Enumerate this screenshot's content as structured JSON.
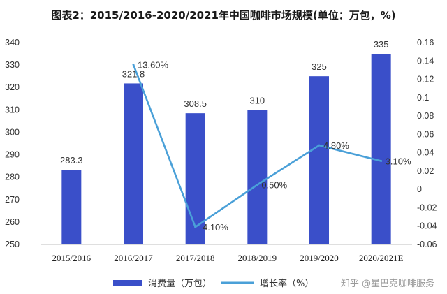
{
  "chart_data": {
    "type": "bar",
    "title": "图表2：2015/2016-2020/2021年中国咖啡市场规模(单位：万包，%)",
    "categories": [
      "2015/2016",
      "2016/2017",
      "2017/2018",
      "2018/2019",
      "2019/2020",
      "2020/2021E"
    ],
    "series": [
      {
        "name": "消费量（万包）",
        "type": "bar",
        "axis": "left",
        "color": "#3a4fc9",
        "values": [
          283.3,
          321.8,
          308.5,
          310,
          325,
          335
        ],
        "labels": [
          "283.3",
          "321.8",
          "308.5",
          "310",
          "325",
          "335"
        ]
      },
      {
        "name": "增长率（%）",
        "type": "line",
        "axis": "right",
        "color": "#4aa0d8",
        "values": [
          null,
          0.136,
          -0.041,
          0.005,
          0.048,
          0.031
        ],
        "labels": [
          "",
          "13.60%",
          "-4.10%",
          "0.50%",
          "4.80%",
          "3.10%"
        ]
      }
    ],
    "y_left": {
      "min": 250,
      "max": 340,
      "ticks": [
        250,
        260,
        270,
        280,
        290,
        300,
        310,
        320,
        330,
        340
      ],
      "tick_labels": [
        "250",
        "260",
        "270",
        "280",
        "290",
        "300",
        "310",
        "320",
        "330",
        "340"
      ]
    },
    "y_right": {
      "min": -0.06,
      "max": 0.16,
      "ticks": [
        -0.06,
        -0.04,
        -0.02,
        0,
        0.02,
        0.04,
        0.06,
        0.08,
        0.1,
        0.12,
        0.14,
        0.16
      ],
      "tick_labels": [
        "-0.06",
        "-0.04",
        "-0.02",
        "0",
        "0.02",
        "0.04",
        "0.06",
        "0.08",
        "0.1",
        "0.12",
        "0.14",
        "0.16"
      ]
    },
    "grid": false,
    "legend": "bottom"
  },
  "watermark": "知乎 @星巴克咖啡服务"
}
